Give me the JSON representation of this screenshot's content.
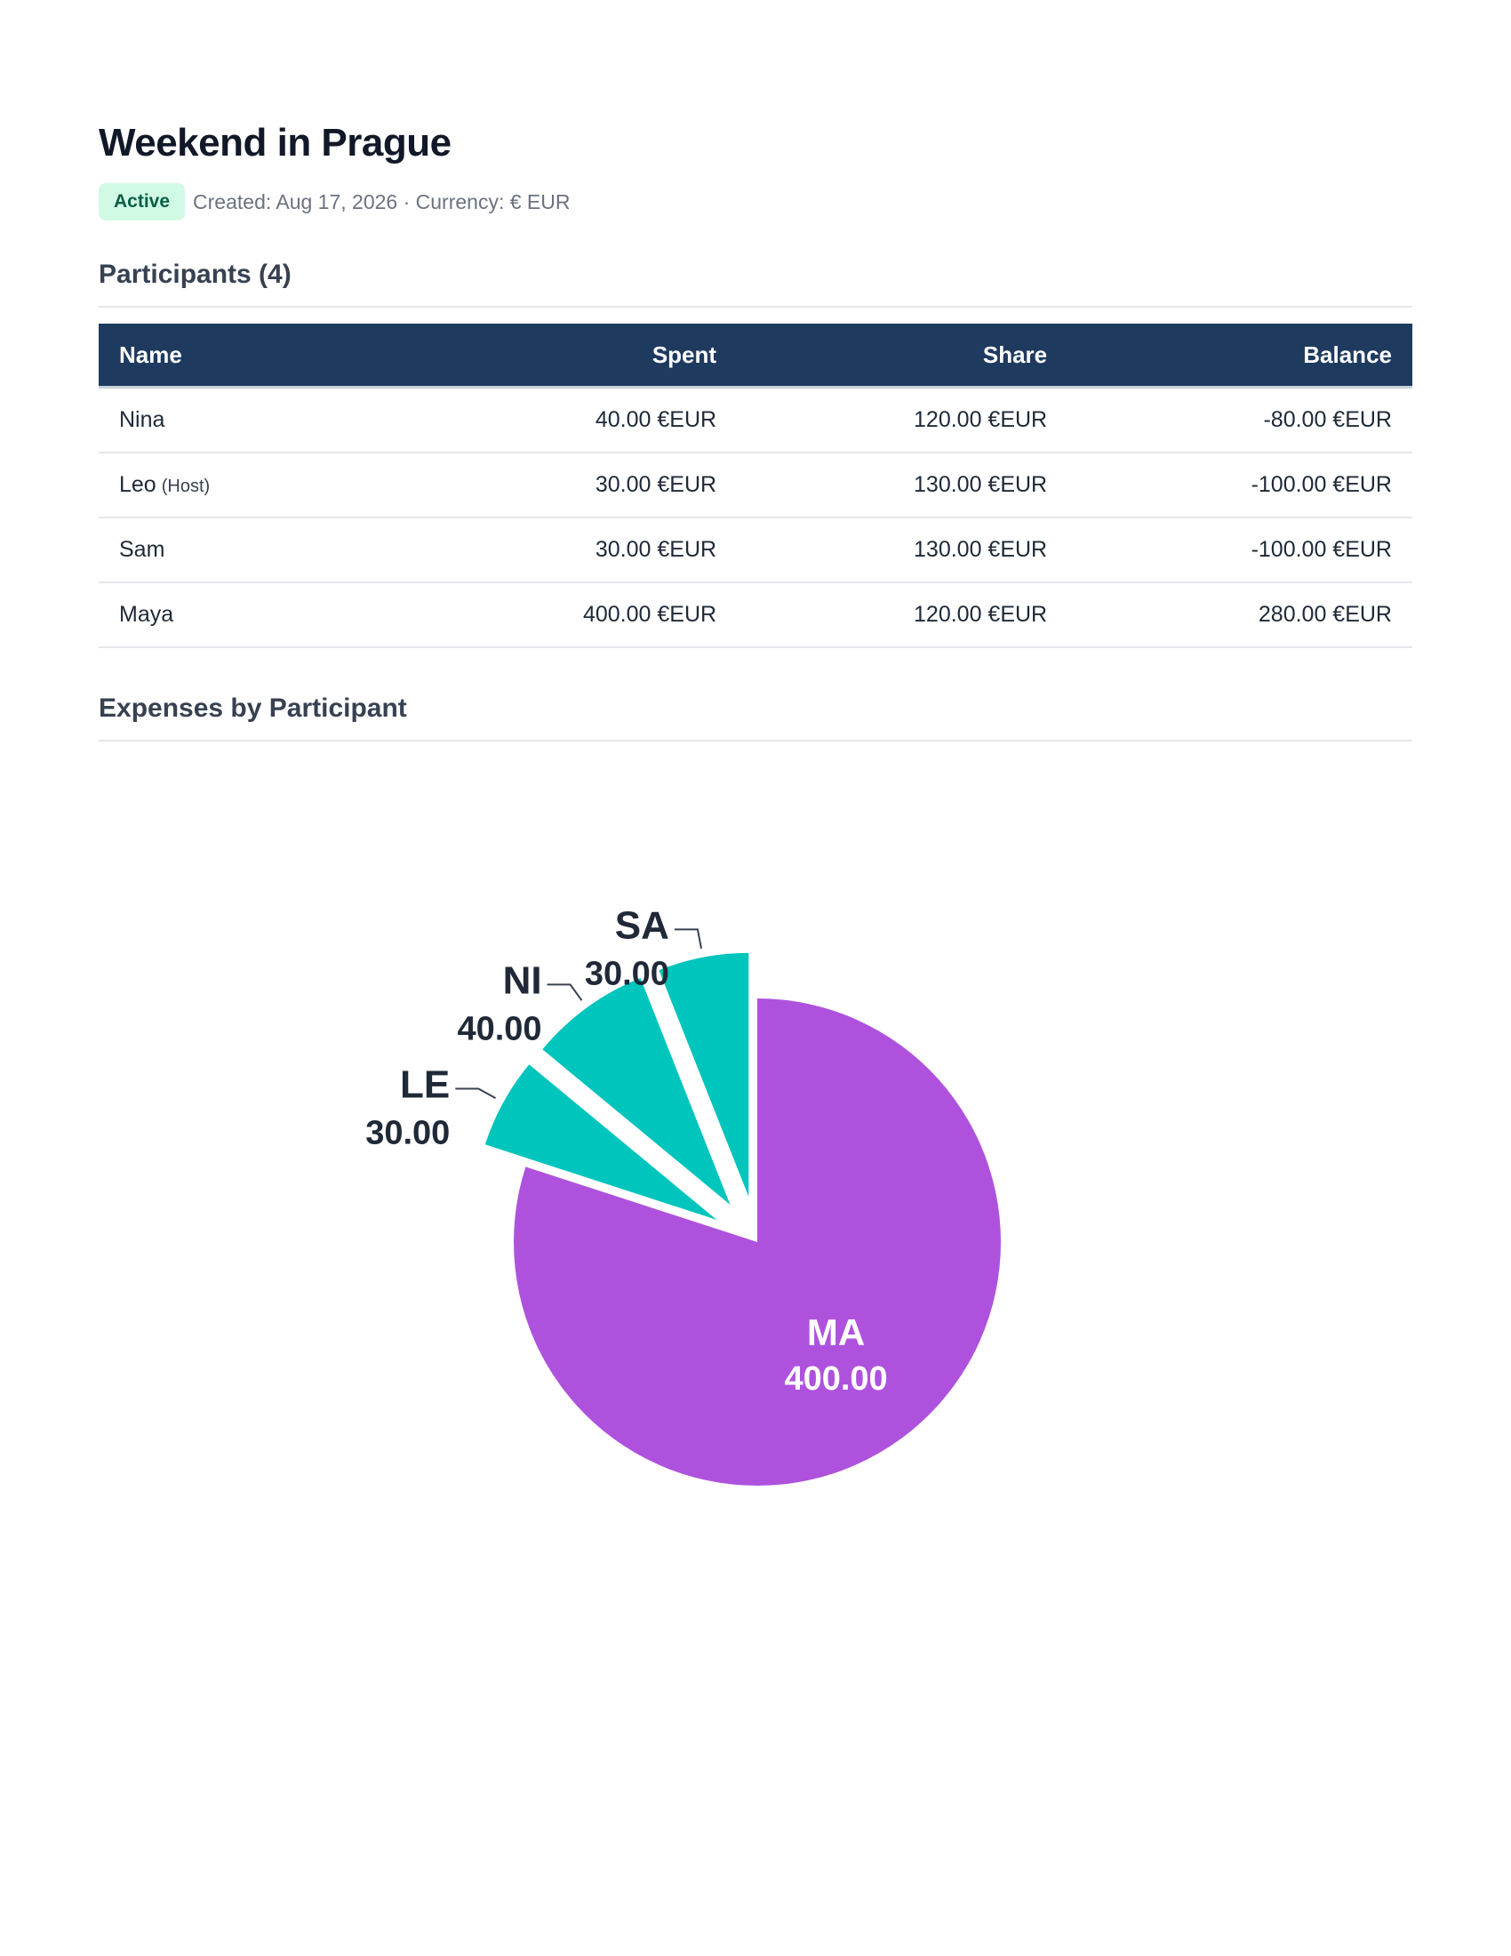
{
  "header": {
    "title": "Weekend in Prague",
    "status_badge": "Active",
    "meta": "Created: Aug 17, 2026 · Currency: € EUR"
  },
  "participants_section": {
    "title": "Participants (4)",
    "columns": [
      "Name",
      "Spent",
      "Share",
      "Balance"
    ],
    "rows": [
      {
        "name": "Nina",
        "tag": "",
        "spent": "40.00 €EUR",
        "share": "120.00 €EUR",
        "balance": "-80.00 €EUR",
        "balance_sign": "negative"
      },
      {
        "name": "Leo",
        "tag": "(Host)",
        "spent": "30.00 €EUR",
        "share": "130.00 €EUR",
        "balance": "-100.00 €EUR",
        "balance_sign": "negative"
      },
      {
        "name": "Sam",
        "tag": "",
        "spent": "30.00 €EUR",
        "share": "130.00 €EUR",
        "balance": "-100.00 €EUR",
        "balance_sign": "negative"
      },
      {
        "name": "Maya",
        "tag": "",
        "spent": "400.00 €EUR",
        "share": "120.00 €EUR",
        "balance": "280.00 €EUR",
        "balance_sign": "positive"
      }
    ]
  },
  "expenses_section": {
    "title": "Expenses by Participant"
  },
  "colors": {
    "header_bg": "#1e3a5f",
    "badge_bg": "#d1fae5",
    "negative": "#c62828",
    "positive": "#059669",
    "slice_large": "#ae52de",
    "slice_small": "#00c5bc"
  },
  "chart_data": {
    "type": "pie",
    "slices": [
      {
        "label": "MA",
        "value": 400.0,
        "value_label": "400.00",
        "color": "#ae52de",
        "exploded": false
      },
      {
        "label": "LE",
        "value": 30.0,
        "value_label": "30.00",
        "color": "#00c5bc",
        "exploded": true
      },
      {
        "label": "NI",
        "value": 40.0,
        "value_label": "40.00",
        "color": "#00c5bc",
        "exploded": true
      },
      {
        "label": "SA",
        "value": 30.0,
        "value_label": "30.00",
        "color": "#00c5bc",
        "exploded": true
      }
    ]
  }
}
